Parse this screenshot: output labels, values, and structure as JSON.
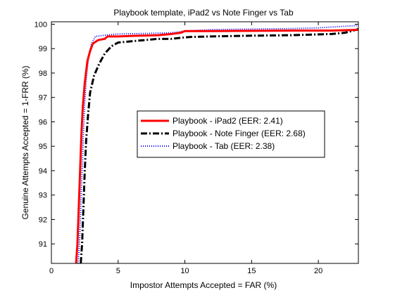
{
  "chart_data": {
    "type": "line",
    "title": "Playbook template, iPad2 vs Note Finger vs Tab",
    "xlabel": "Impostor Attempts Accepted = FAR (%)",
    "ylabel": "Genuine Attempts Accepted = 1-FRR (%)",
    "xlim": [
      0,
      23
    ],
    "ylim": [
      90.2,
      100.1
    ],
    "xticks": [
      "0",
      "5",
      "10",
      "15",
      "20"
    ],
    "yticks": [
      "91",
      "92",
      "93",
      "94",
      "95",
      "96",
      "97",
      "98",
      "99",
      "100"
    ],
    "grid": false,
    "legend_position": "center-right",
    "series": [
      {
        "name": "Playbook - iPad2 (EER: 2.41)",
        "color": "#ff0000",
        "style": "solid",
        "points": [
          [
            1.85,
            90.2
          ],
          [
            1.95,
            91.0
          ],
          [
            2.05,
            92.5
          ],
          [
            2.15,
            94.0
          ],
          [
            2.25,
            95.5
          ],
          [
            2.35,
            96.6
          ],
          [
            2.5,
            97.6
          ],
          [
            2.7,
            98.5
          ],
          [
            2.9,
            98.9
          ],
          [
            3.1,
            99.2
          ],
          [
            3.5,
            99.35
          ],
          [
            4.0,
            99.4
          ],
          [
            4.2,
            99.5
          ],
          [
            5.0,
            99.5
          ],
          [
            6.0,
            99.52
          ],
          [
            8.0,
            99.55
          ],
          [
            9.0,
            99.6
          ],
          [
            9.7,
            99.65
          ],
          [
            10.0,
            99.72
          ],
          [
            12.0,
            99.72
          ],
          [
            15.0,
            99.73
          ],
          [
            18.0,
            99.74
          ],
          [
            21.0,
            99.74
          ],
          [
            22.5,
            99.76
          ],
          [
            23.0,
            99.77
          ]
        ]
      },
      {
        "name": "Playbook - Note Finger (EER: 2.68)",
        "color": "#000000",
        "style": "dashdot",
        "points": [
          [
            2.2,
            90.2
          ],
          [
            2.3,
            91.0
          ],
          [
            2.4,
            92.5
          ],
          [
            2.5,
            94.0
          ],
          [
            2.6,
            95.2
          ],
          [
            2.75,
            96.3
          ],
          [
            2.9,
            97.2
          ],
          [
            3.2,
            97.9
          ],
          [
            3.6,
            98.4
          ],
          [
            4.0,
            98.8
          ],
          [
            4.5,
            99.1
          ],
          [
            5.0,
            99.25
          ],
          [
            6.0,
            99.3
          ],
          [
            7.0,
            99.35
          ],
          [
            8.0,
            99.4
          ],
          [
            9.0,
            99.4
          ],
          [
            9.8,
            99.45
          ],
          [
            10.5,
            99.48
          ],
          [
            12.0,
            99.5
          ],
          [
            15.0,
            99.53
          ],
          [
            18.0,
            99.55
          ],
          [
            21.0,
            99.6
          ],
          [
            22.0,
            99.65
          ],
          [
            22.5,
            99.72
          ],
          [
            23.0,
            99.8
          ]
        ]
      },
      {
        "name": "Playbook - Tab (EER: 2.38)",
        "color": "#0000ff",
        "style": "dotted",
        "points": [
          [
            2.0,
            90.2
          ],
          [
            2.1,
            91.0
          ],
          [
            2.2,
            92.5
          ],
          [
            2.3,
            94.0
          ],
          [
            2.4,
            95.5
          ],
          [
            2.5,
            96.8
          ],
          [
            2.65,
            98.0
          ],
          [
            2.8,
            98.7
          ],
          [
            3.0,
            99.2
          ],
          [
            3.3,
            99.5
          ],
          [
            4.0,
            99.55
          ],
          [
            5.0,
            99.6
          ],
          [
            7.0,
            99.62
          ],
          [
            9.0,
            99.65
          ],
          [
            10.0,
            99.72
          ],
          [
            12.0,
            99.78
          ],
          [
            15.0,
            99.8
          ],
          [
            18.0,
            99.82
          ],
          [
            20.0,
            99.85
          ],
          [
            21.5,
            99.9
          ],
          [
            23.0,
            99.95
          ]
        ]
      }
    ]
  }
}
